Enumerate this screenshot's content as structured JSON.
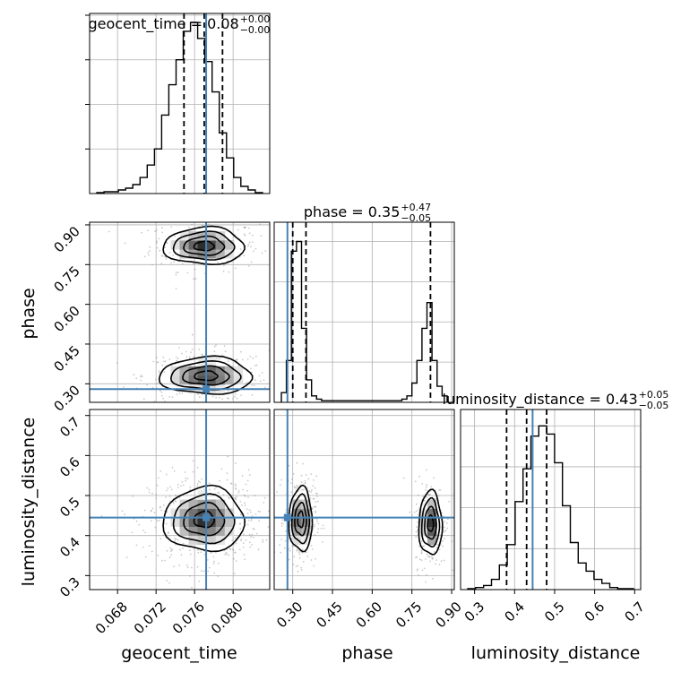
{
  "chart_data": {
    "type": "corner",
    "parameters": [
      "geocent_time",
      "phase",
      "luminosity_distance"
    ],
    "truth_color": "#4682b4",
    "truths": {
      "geocent_time": 0.0772,
      "phase": 0.28,
      "luminosity_distance": 0.445
    },
    "ranges": {
      "geocent_time": [
        0.0651,
        0.0838
      ],
      "phase": [
        0.23,
        0.91
      ],
      "luminosity_distance": [
        0.265,
        0.715
      ]
    },
    "ticks": {
      "geocent_time": [
        0.068,
        0.072,
        0.076,
        0.08
      ],
      "phase": [
        0.3,
        0.45,
        0.6,
        0.75,
        0.9
      ],
      "luminosity_distance": [
        0.3,
        0.4,
        0.5,
        0.6,
        0.7
      ]
    },
    "tick_labels": {
      "geocent_time": [
        "0.068",
        "0.072",
        "0.076",
        "0.080"
      ],
      "phase": [
        "0.30",
        "0.45",
        "0.60",
        "0.75",
        "0.90"
      ],
      "luminosity_distance": [
        "0.3",
        "0.4",
        "0.5",
        "0.6",
        "0.7"
      ]
    },
    "titles": [
      {
        "param": "geocent_time",
        "main": "geocent_time = 0.08",
        "sup": "+0.00",
        "sub": "−0.00"
      },
      {
        "param": "phase",
        "main": "phase = 0.35",
        "sup": "+0.47",
        "sub": "−0.05"
      },
      {
        "param": "luminosity_distance",
        "main": "luminosity_distance = 0.43",
        "sup": "+0.05",
        "sub": "−0.05"
      }
    ],
    "quantiles": {
      "geocent_time": [
        0.0749,
        0.077,
        0.0789
      ],
      "phase": [
        0.3,
        0.35,
        0.82
      ],
      "luminosity_distance": [
        0.38,
        0.43,
        0.48
      ]
    },
    "histograms": {
      "geocent_time": [
        0.5,
        1,
        1,
        2,
        3,
        5,
        9,
        16,
        25,
        44,
        61,
        75,
        91,
        96,
        87,
        74,
        57,
        34,
        20,
        9,
        4,
        2,
        0.5
      ],
      "phase": [
        3,
        13,
        47,
        50,
        23,
        7,
        2,
        1,
        0.5,
        0.5,
        0.5,
        0.5,
        0.5,
        0.5,
        0.5,
        0.5,
        0.5,
        0.5,
        0.5,
        0.5,
        0.5,
        0.5,
        0.5,
        0.5,
        1,
        2,
        6,
        13,
        23,
        31,
        13,
        5,
        2
      ],
      "luminosity_distance": [
        0.5,
        1,
        2,
        5,
        12,
        22,
        43,
        59,
        75,
        80,
        76,
        62,
        41,
        23,
        13,
        9,
        5,
        3,
        1,
        0.5,
        0.5
      ]
    },
    "hist_ymax": {
      "geocent_time": 101,
      "phase": 56,
      "luminosity_distance": 88
    },
    "hist_grid_levels": {
      "geocent_time": [
        25,
        50,
        75,
        100
      ],
      "phase": [
        12.5,
        25,
        37.5,
        50
      ],
      "luminosity_distance": [
        20,
        40,
        60,
        80
      ]
    },
    "modes": [
      {
        "x": "geocent_time",
        "y": "phase",
        "cx": 0.077,
        "cy": 0.82,
        "sx": 0.0021,
        "sy": 0.035,
        "w": 0.45
      },
      {
        "x": "geocent_time",
        "y": "phase",
        "cx": 0.0772,
        "cy": 0.33,
        "sx": 0.0024,
        "sy": 0.035,
        "w": 0.55
      },
      {
        "x": "geocent_time",
        "y": "luminosity_distance",
        "cx": 0.077,
        "cy": 0.44,
        "sx": 0.0021,
        "sy": 0.04,
        "w": 1.0
      },
      {
        "x": "phase",
        "y": "luminosity_distance",
        "cx": 0.33,
        "cy": 0.44,
        "sx": 0.022,
        "sy": 0.04,
        "w": 0.55
      },
      {
        "x": "phase",
        "y": "luminosity_distance",
        "cx": 0.82,
        "cy": 0.43,
        "sx": 0.022,
        "sy": 0.04,
        "w": 0.45
      }
    ],
    "contour_levels_sigma": [
      0.5,
      1.0,
      1.5,
      2.0
    ],
    "grid": true
  }
}
